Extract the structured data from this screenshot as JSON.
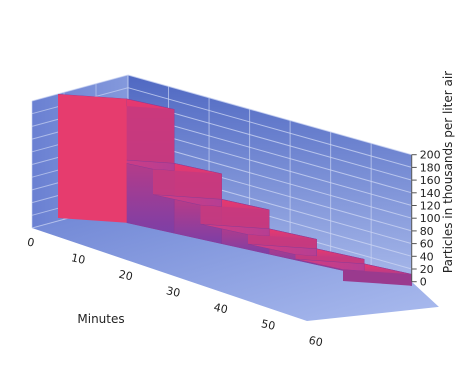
{
  "chart_data": {
    "type": "area",
    "title": "",
    "xlabel": "Minutes",
    "ylabel": "Particles in thousands per liter air",
    "x_ticks": [
      "0",
      "10",
      "20",
      "30",
      "40",
      "50",
      "60"
    ],
    "y_ticks": [
      "0",
      "20",
      "40",
      "60",
      "80",
      "100",
      "120",
      "140",
      "160",
      "180",
      "200"
    ],
    "ylim": [
      0,
      200
    ],
    "series": [
      {
        "x": [
          0,
          10,
          20,
          30,
          40,
          50
        ],
        "values": [
          195,
          110,
          70,
          40,
          25,
          18
        ]
      }
    ],
    "grid": true,
    "colors": {
      "wall_top": "#5a72c8",
      "wall_bottom": "#9cb0e6",
      "floor": "#7e93d8",
      "bar_front": "#d43c78",
      "bar_top": "#e84a78"
    }
  }
}
